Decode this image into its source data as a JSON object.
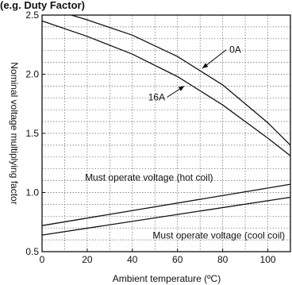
{
  "chart_data": {
    "type": "line",
    "title": "(e.g. Duty Factor)",
    "xlabel": "Ambient temperature (ºC)",
    "ylabel": "Nominal voltage multiplying factor",
    "xlim": [
      0,
      110
    ],
    "ylim": [
      0.5,
      2.5
    ],
    "x_ticks": [
      0,
      20,
      40,
      60,
      80,
      100
    ],
    "y_ticks": [
      0.5,
      1.0,
      1.5,
      2.0,
      2.5
    ],
    "x_tick_labels": [
      "0",
      "20",
      "40",
      "60",
      "80",
      "100"
    ],
    "y_tick_labels": [
      "0.5",
      "1.0",
      "1.5",
      "2.0",
      "2.5"
    ],
    "grid": true,
    "series": [
      {
        "name": "0A",
        "x": [
          13,
          20,
          40,
          60,
          80,
          100,
          110
        ],
        "y": [
          2.5,
          2.46,
          2.33,
          2.15,
          1.91,
          1.59,
          1.4
        ]
      },
      {
        "name": "16A",
        "x": [
          0,
          20,
          40,
          60,
          80,
          100,
          110
        ],
        "y": [
          2.45,
          2.32,
          2.17,
          1.98,
          1.74,
          1.46,
          1.31
        ]
      },
      {
        "name": "Must operate voltage (hot coil)",
        "x": [
          0,
          110
        ],
        "y": [
          0.72,
          1.07
        ]
      },
      {
        "name": "Must operate voltage (cool coil)",
        "x": [
          0,
          110
        ],
        "y": [
          0.64,
          0.96
        ]
      }
    ],
    "annotations": [
      {
        "text": "0A",
        "series": "0A",
        "x": 71,
        "y": 2.05,
        "text_x": 83,
        "text_y": 2.18
      },
      {
        "text": "16A",
        "series": "16A",
        "x": 63,
        "y": 1.9,
        "text_x": 47,
        "text_y": 1.78
      },
      {
        "text": "Must operate voltage (hot coil)",
        "series": "Must operate voltage (hot coil)",
        "text_x": 19,
        "text_y": 1.1
      },
      {
        "text": "Must operate voltage (cool coil)",
        "series": "Must operate voltage (cool coil)",
        "text_x": 49,
        "text_y": 0.61
      }
    ]
  }
}
